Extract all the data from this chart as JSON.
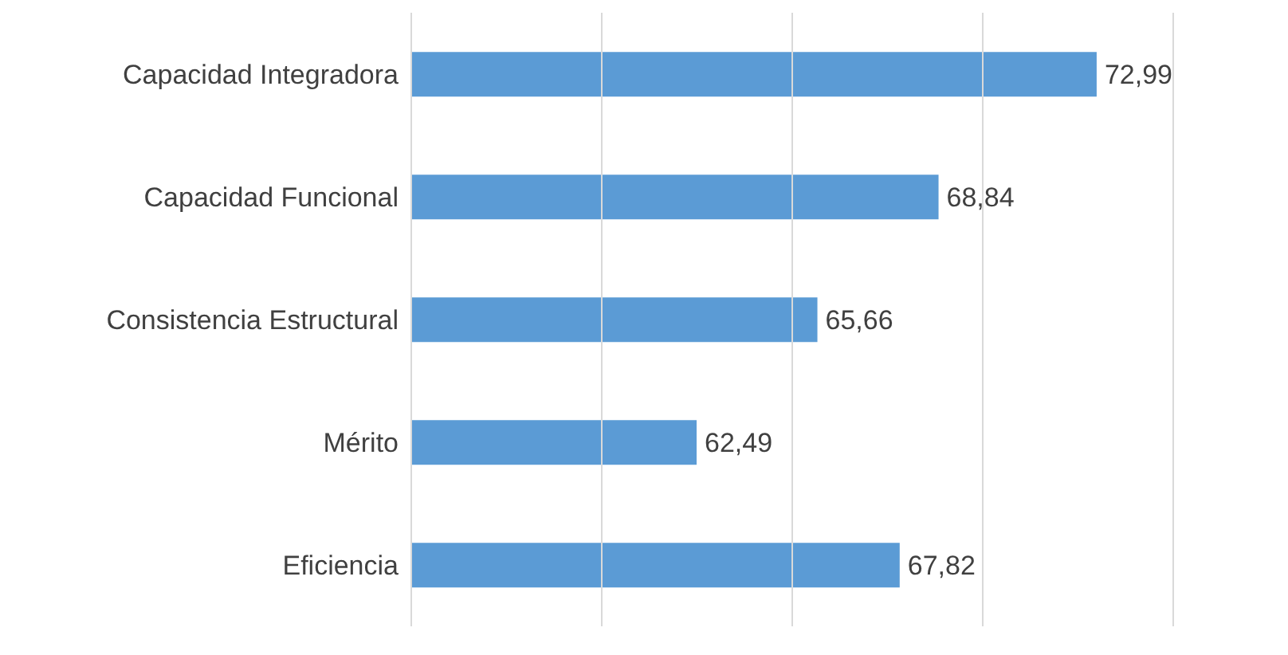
{
  "chart_data": {
    "type": "bar",
    "orientation": "horizontal",
    "categories": [
      "Capacidad Integradora",
      "Capacidad Funcional",
      "Consistencia Estructural",
      "Mérito",
      "Eficiencia"
    ],
    "values": [
      72.99,
      68.84,
      65.66,
      62.49,
      67.82
    ],
    "color": "#5b9bd5",
    "value_labels": [
      "72,99",
      "68,84",
      "65,66",
      "62,49",
      "67,82"
    ],
    "xlim": [
      55,
      75
    ],
    "xticks": [
      {
        "value": 55,
        "label": null
      },
      {
        "value": 60,
        "label": null
      },
      {
        "value": 65,
        "label": null
      },
      {
        "value": 70,
        "label": null
      },
      {
        "value": 75,
        "label": null
      }
    ],
    "tick_labels": "y",
    "grid": "x"
  }
}
